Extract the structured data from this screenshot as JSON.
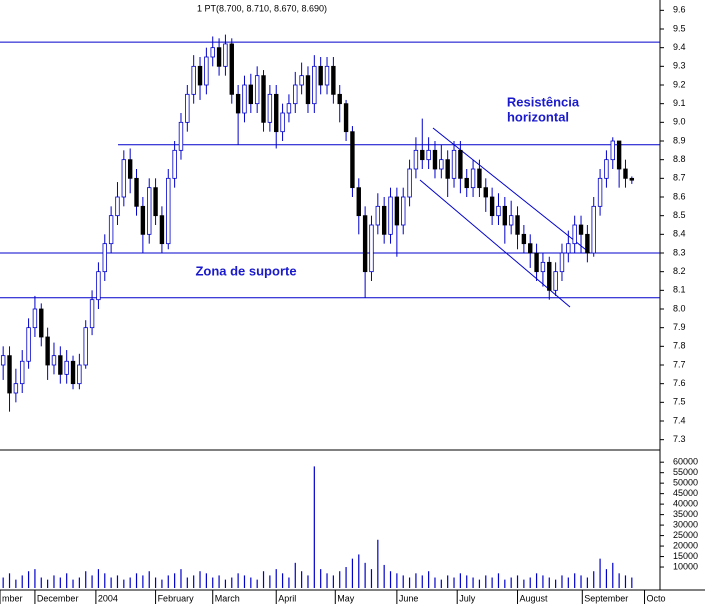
{
  "chart_data": {
    "type": "candlestick",
    "title": "1 PT(8.700, 8.710, 8.670, 8.690)",
    "annotations": [
      "Resistência",
      "horizontal",
      "Zona de suporte"
    ],
    "color": "#0000cc",
    "down_color": "#000000",
    "xlim": [
      -0.5,
      99.5
    ],
    "xticks": [
      {
        "value": -0.5,
        "label": "mber"
      },
      {
        "value": 5,
        "label": "December"
      },
      {
        "value": 14.6,
        "label": "2004"
      },
      {
        "value": 24,
        "label": "February"
      },
      {
        "value": 33,
        "label": "March"
      },
      {
        "value": 43,
        "label": "April"
      },
      {
        "value": 52.3,
        "label": "May"
      },
      {
        "value": 62,
        "label": "June"
      },
      {
        "value": 71.5,
        "label": "July"
      },
      {
        "value": 81,
        "label": "August"
      },
      {
        "value": 91.2,
        "label": "September"
      },
      {
        "value": 101,
        "label": "Octo"
      }
    ],
    "ylim": [
      7.25,
      9.65
    ],
    "yticks": [
      7.3,
      7.4,
      7.5,
      7.6,
      7.7,
      7.8,
      7.9,
      {
        "value": 8,
        "label": "8.0"
      },
      8.1,
      8.2,
      8.3,
      8.4,
      8.5,
      8.6,
      8.7,
      8.8,
      8.9,
      {
        "value": 9,
        "label": "9.0"
      },
      9.1,
      9.2,
      9.3,
      9.4,
      9.5,
      9.6
    ],
    "levels": [
      9.43,
      8.88,
      8.3,
      8.06
    ],
    "open": [
      7.7,
      7.75,
      7.55,
      7.6,
      7.72,
      7.9,
      8.0,
      7.85,
      7.7,
      7.75,
      7.65,
      7.72,
      7.6,
      7.7,
      7.9,
      8.05,
      8.2,
      8.35,
      8.5,
      8.6,
      8.8,
      8.7,
      8.55,
      8.4,
      8.65,
      8.5,
      8.35,
      8.7,
      8.85,
      9.0,
      9.15,
      9.3,
      9.2,
      9.35,
      9.4,
      9.3,
      9.42,
      9.15,
      9.05,
      9.2,
      9.1,
      9.25,
      9.0,
      9.15,
      8.95,
      9.05,
      9.1,
      9.2,
      9.25,
      9.1,
      9.3,
      9.2,
      9.3,
      9.15,
      9.1,
      8.95,
      8.65,
      8.5,
      8.2,
      8.45,
      8.55,
      8.4,
      8.6,
      8.45,
      8.6,
      8.75,
      8.85,
      8.8,
      8.85,
      8.75,
      8.8,
      8.7,
      8.85,
      8.7,
      8.65,
      8.75,
      8.65,
      8.6,
      8.5,
      8.55,
      8.45,
      8.5,
      8.4,
      8.35,
      8.3,
      8.2,
      8.25,
      8.1,
      8.2,
      8.3,
      8.35,
      8.45,
      8.4,
      8.3,
      8.55,
      8.7,
      8.8,
      8.9,
      8.75,
      8.7
    ],
    "high": [
      7.8,
      7.8,
      7.68,
      7.78,
      7.95,
      8.07,
      8.03,
      7.9,
      7.82,
      7.8,
      7.78,
      7.75,
      7.76,
      7.94,
      8.1,
      8.25,
      8.4,
      8.55,
      8.68,
      8.85,
      8.86,
      8.75,
      8.6,
      8.7,
      8.7,
      8.55,
      8.75,
      8.9,
      9.05,
      9.2,
      9.36,
      9.35,
      9.4,
      9.46,
      9.45,
      9.47,
      9.45,
      9.2,
      9.25,
      9.26,
      9.3,
      9.28,
      9.2,
      9.2,
      9.1,
      9.15,
      9.27,
      9.32,
      9.3,
      9.36,
      9.35,
      9.35,
      9.35,
      9.2,
      9.12,
      8.98,
      8.7,
      8.55,
      8.5,
      8.62,
      8.6,
      8.65,
      8.65,
      8.65,
      8.8,
      8.92,
      9.02,
      8.92,
      8.9,
      8.88,
      8.85,
      8.9,
      8.9,
      8.75,
      8.8,
      8.8,
      8.7,
      8.65,
      8.62,
      8.6,
      8.58,
      8.55,
      8.45,
      8.4,
      8.35,
      8.3,
      8.28,
      8.25,
      8.35,
      8.42,
      8.5,
      8.5,
      8.45,
      8.6,
      8.75,
      8.85,
      8.92,
      8.9,
      8.8,
      8.71
    ],
    "low": [
      7.62,
      7.45,
      7.5,
      7.55,
      7.68,
      7.85,
      7.8,
      7.62,
      7.65,
      7.6,
      7.6,
      7.57,
      7.57,
      7.68,
      7.86,
      8.0,
      8.15,
      8.3,
      8.45,
      8.55,
      8.62,
      8.5,
      8.3,
      8.35,
      8.45,
      8.3,
      8.32,
      8.65,
      8.8,
      8.95,
      9.1,
      9.12,
      9.15,
      9.3,
      9.25,
      9.25,
      9.1,
      8.88,
      9.0,
      9.05,
      9.05,
      8.95,
      8.95,
      8.86,
      8.9,
      9.0,
      9.05,
      9.15,
      9.05,
      9.05,
      9.15,
      9.15,
      9.1,
      9.0,
      8.9,
      8.6,
      8.4,
      8.06,
      8.15,
      8.4,
      8.35,
      8.35,
      8.28,
      8.4,
      8.55,
      8.7,
      8.75,
      8.75,
      8.7,
      8.7,
      8.6,
      8.65,
      8.62,
      8.6,
      8.6,
      8.6,
      8.52,
      8.45,
      8.45,
      8.35,
      8.4,
      8.32,
      8.3,
      8.22,
      8.15,
      8.12,
      8.05,
      8.07,
      8.15,
      8.25,
      8.3,
      8.3,
      8.25,
      8.28,
      8.5,
      8.65,
      8.75,
      8.65,
      8.65,
      8.67
    ],
    "close": [
      7.75,
      7.55,
      7.6,
      7.72,
      7.9,
      8.0,
      7.85,
      7.7,
      7.75,
      7.65,
      7.72,
      7.6,
      7.7,
      7.9,
      8.05,
      8.2,
      8.35,
      8.5,
      8.6,
      8.8,
      8.7,
      8.55,
      8.4,
      8.65,
      8.5,
      8.35,
      8.7,
      8.85,
      9.0,
      9.15,
      9.3,
      9.2,
      9.35,
      9.4,
      9.3,
      9.42,
      9.15,
      9.05,
      9.2,
      9.1,
      9.25,
      9.0,
      9.15,
      8.95,
      9.05,
      9.1,
      9.2,
      9.25,
      9.1,
      9.3,
      9.2,
      9.3,
      9.15,
      9.1,
      8.95,
      8.65,
      8.5,
      8.2,
      8.45,
      8.55,
      8.4,
      8.6,
      8.45,
      8.6,
      8.75,
      8.85,
      8.8,
      8.85,
      8.75,
      8.8,
      8.7,
      8.85,
      8.7,
      8.65,
      8.75,
      8.65,
      8.6,
      8.5,
      8.55,
      8.45,
      8.5,
      8.4,
      8.35,
      8.3,
      8.2,
      8.25,
      8.1,
      8.2,
      8.3,
      8.35,
      8.45,
      8.4,
      8.3,
      8.55,
      8.7,
      8.8,
      8.9,
      8.75,
      8.7,
      8.69
    ],
    "volume": [
      5000,
      7000,
      4000,
      6000,
      8000,
      9000,
      5000,
      4000,
      6000,
      5000,
      7000,
      4000,
      5000,
      8000,
      6000,
      9000,
      7000,
      5000,
      6000,
      4000,
      5000,
      7000,
      6000,
      8000,
      5000,
      4000,
      6000,
      7000,
      9000,
      5000,
      6000,
      8000,
      7000,
      5000,
      6000,
      4000,
      5000,
      7000,
      6000,
      5000,
      4000,
      8000,
      6000,
      9000,
      7000,
      5000,
      12000,
      8000,
      6000,
      58000,
      9000,
      7000,
      6000,
      8000,
      10000,
      14000,
      16000,
      12000,
      9000,
      23000,
      11000,
      8000,
      7000,
      6000,
      5000,
      7000,
      6000,
      8000,
      5000,
      4000,
      6000,
      5000,
      7000,
      6000,
      5000,
      4000,
      6000,
      5000,
      7000,
      4000,
      5000,
      6000,
      4000,
      5000,
      7000,
      6000,
      5000,
      4000,
      6000,
      5000,
      7000,
      6000,
      5000,
      8000,
      14000,
      9000,
      12000,
      7000,
      6000,
      5000
    ],
    "y2lim": [
      0,
      62000
    ],
    "y2ticks": [
      10000,
      15000,
      20000,
      25000,
      30000,
      35000,
      40000,
      45000,
      50000,
      55000,
      60000
    ]
  }
}
